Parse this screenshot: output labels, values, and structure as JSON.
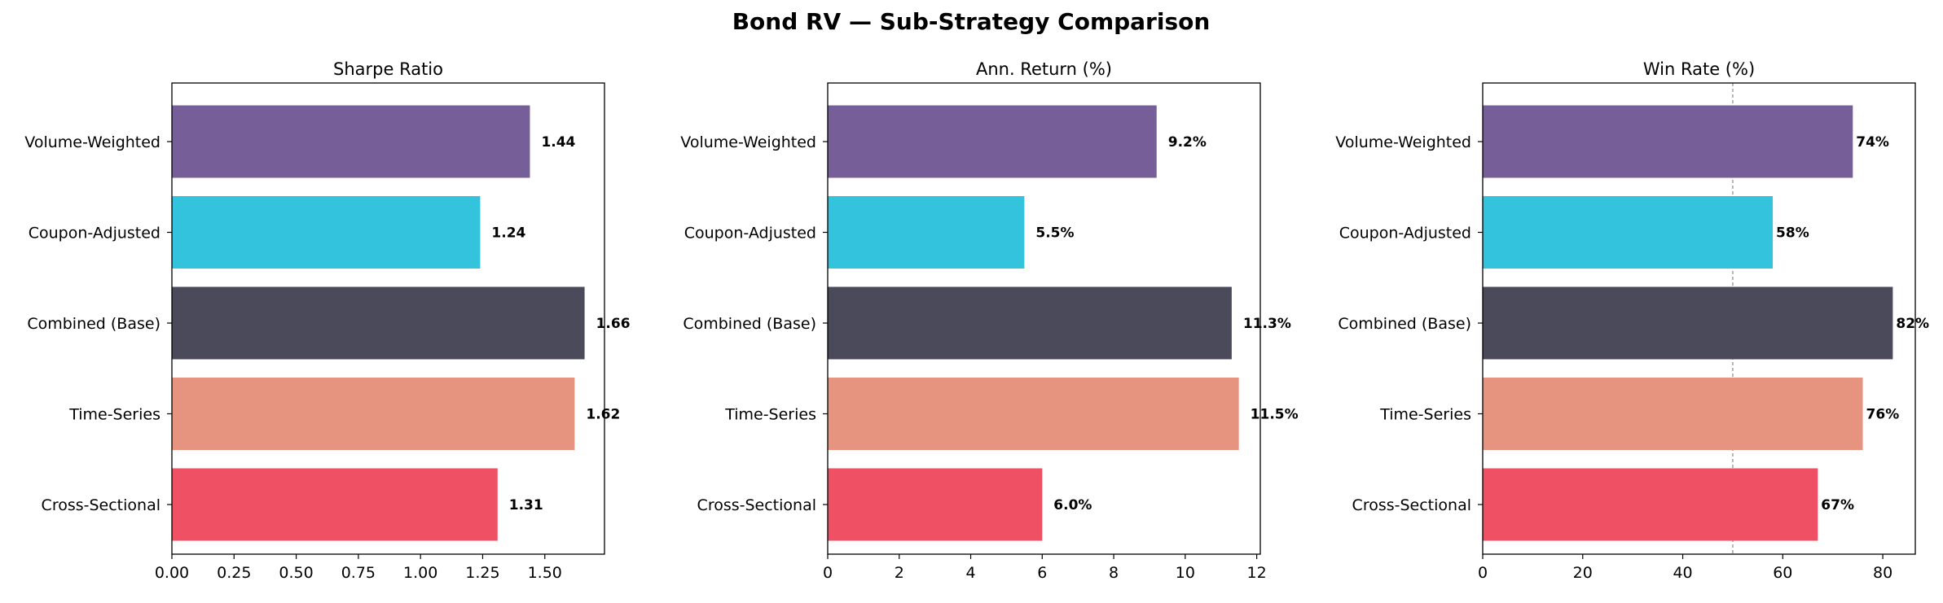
{
  "title": "Bond RV — Sub-Strategy Comparison",
  "categories": [
    "Volume-Weighted",
    "Coupon-Adjusted",
    "Combined (Base)",
    "Time-Series",
    "Cross-Sectional"
  ],
  "colors": [
    "#765e99",
    "#33c3dd",
    "#4a4a5a",
    "#e69480",
    "#f05064"
  ],
  "chart_data": [
    {
      "type": "bar",
      "orientation": "horizontal",
      "title": "Sharpe Ratio",
      "categories": [
        "Volume-Weighted",
        "Coupon-Adjusted",
        "Combined (Base)",
        "Time-Series",
        "Cross-Sectional"
      ],
      "values": [
        1.44,
        1.24,
        1.66,
        1.62,
        1.31
      ],
      "labels": [
        "1.44",
        "1.24",
        "1.66",
        "1.62",
        "1.31"
      ],
      "xlim": [
        0,
        1.74
      ],
      "xticks": [
        0,
        0.25,
        0.5,
        0.75,
        1.0,
        1.25,
        1.5
      ],
      "xtick_labels": [
        "0.00",
        "0.25",
        "0.50",
        "0.75",
        "1.00",
        "1.25",
        "1.50"
      ],
      "reference_line": null
    },
    {
      "type": "bar",
      "orientation": "horizontal",
      "title": "Ann. Return (%)",
      "categories": [
        "Volume-Weighted",
        "Coupon-Adjusted",
        "Combined (Base)",
        "Time-Series",
        "Cross-Sectional"
      ],
      "values": [
        9.2,
        5.5,
        11.3,
        11.5,
        6.0
      ],
      "labels": [
        "9.2%",
        "5.5%",
        "11.3%",
        "11.5%",
        "6.0%"
      ],
      "xlim": [
        0,
        12.1
      ],
      "xticks": [
        0,
        2,
        4,
        6,
        8,
        10,
        12
      ],
      "xtick_labels": [
        "0",
        "2",
        "4",
        "6",
        "8",
        "10",
        "12"
      ],
      "reference_line": null
    },
    {
      "type": "bar",
      "orientation": "horizontal",
      "title": "Win Rate (%)",
      "categories": [
        "Volume-Weighted",
        "Coupon-Adjusted",
        "Combined (Base)",
        "Time-Series",
        "Cross-Sectional"
      ],
      "values": [
        74,
        58,
        82,
        76,
        67
      ],
      "labels": [
        "74%",
        "58%",
        "82%",
        "76%",
        "67%"
      ],
      "xlim": [
        0,
        86.5
      ],
      "xticks": [
        0,
        20,
        40,
        60,
        80
      ],
      "xtick_labels": [
        "0",
        "20",
        "40",
        "60",
        "80"
      ],
      "reference_line": 50
    }
  ]
}
